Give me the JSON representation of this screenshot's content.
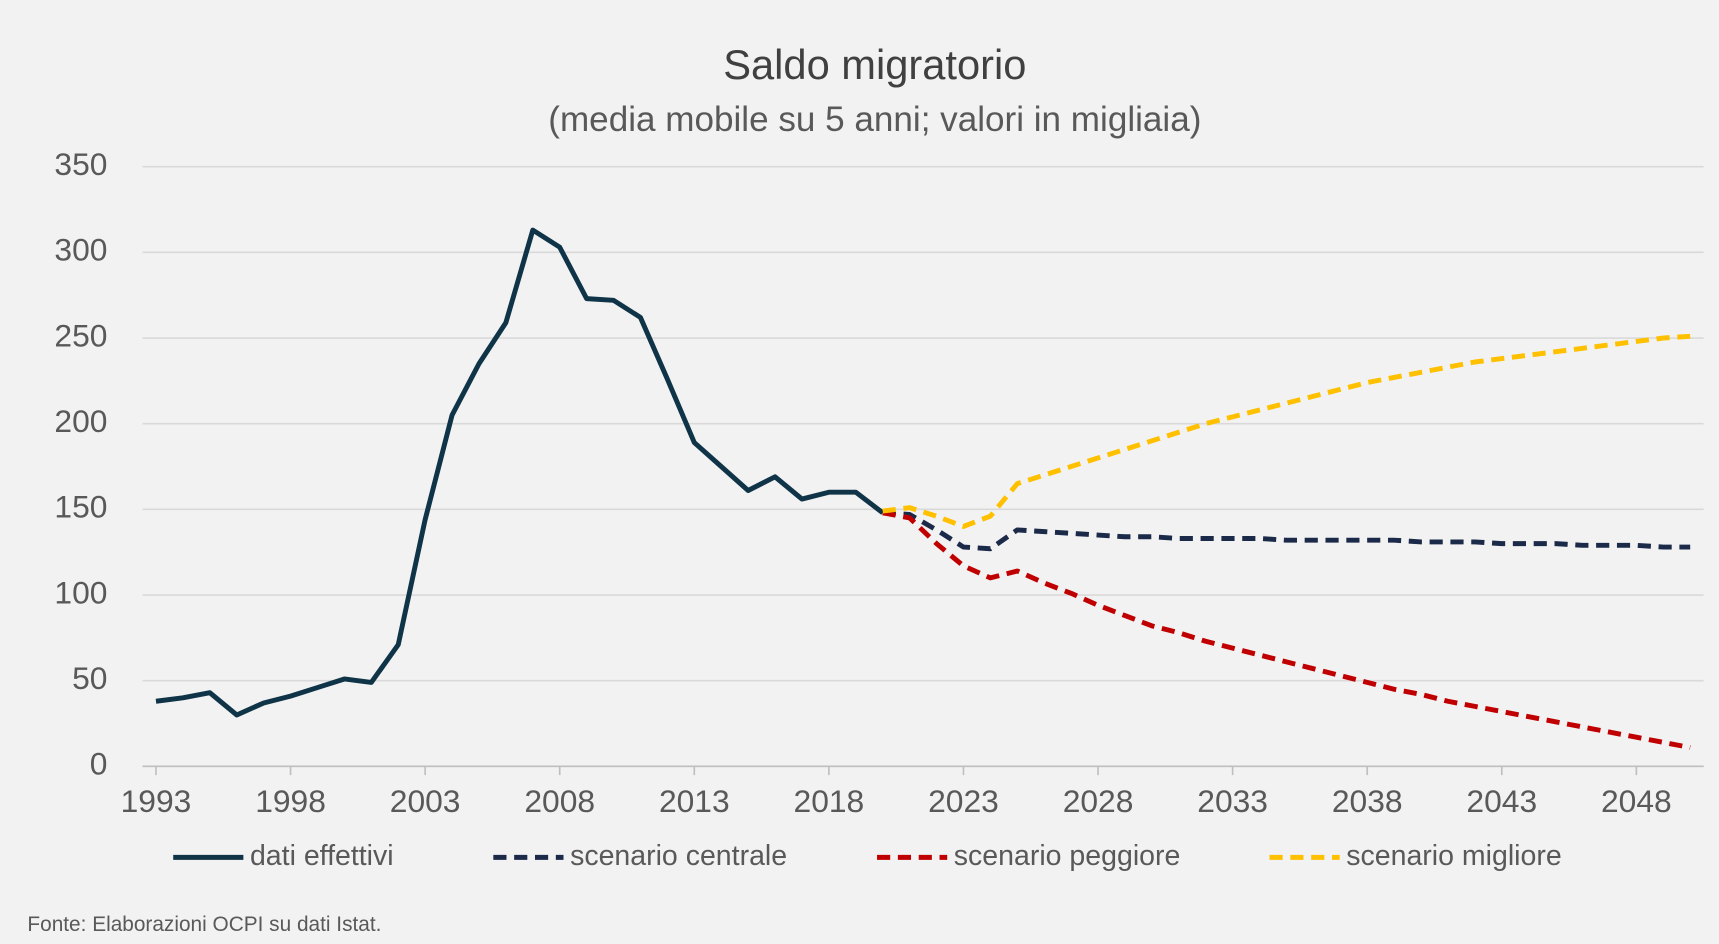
{
  "chart_data": {
    "type": "line",
    "title": "Saldo migratorio",
    "subtitle": "(media mobile su 5 anni; valori in migliaia)",
    "source": "Fonte: Elaborazioni OCPI su dati Istat.",
    "x": [
      1993,
      1994,
      1995,
      1996,
      1997,
      1998,
      1999,
      2000,
      2001,
      2002,
      2003,
      2004,
      2005,
      2006,
      2007,
      2008,
      2009,
      2010,
      2011,
      2012,
      2013,
      2014,
      2015,
      2016,
      2017,
      2018,
      2019,
      2020,
      2021,
      2022,
      2023,
      2024,
      2025,
      2026,
      2027,
      2028,
      2029,
      2030,
      2031,
      2032,
      2033,
      2034,
      2035,
      2036,
      2037,
      2038,
      2039,
      2040,
      2041,
      2042,
      2043,
      2044,
      2045,
      2046,
      2047,
      2048,
      2049,
      2050
    ],
    "xlim": [
      1992.5,
      2050.5
    ],
    "xticks": [
      1993,
      1998,
      2003,
      2008,
      2013,
      2018,
      2023,
      2028,
      2033,
      2038,
      2043,
      2048
    ],
    "ylim": [
      0,
      350
    ],
    "yticks": [
      0,
      50,
      100,
      150,
      200,
      250,
      300,
      350
    ],
    "grid": true,
    "legend": "bottom",
    "series": [
      {
        "name": "dati effettivi",
        "color": "#0f3447",
        "dash": false,
        "values": [
          38,
          40,
          43,
          30,
          37,
          41,
          46,
          51,
          49,
          71,
          144,
          205,
          235,
          259,
          313,
          303,
          273,
          272,
          262,
          226,
          189,
          175,
          161,
          169,
          156,
          160,
          160,
          148,
          null,
          null,
          null,
          null,
          null,
          null,
          null,
          null,
          null,
          null,
          null,
          null,
          null,
          null,
          null,
          null,
          null,
          null,
          null,
          null,
          null,
          null,
          null,
          null,
          null,
          null,
          null,
          null,
          null,
          null
        ]
      },
      {
        "name": "scenario centrale",
        "color": "#1b2a48",
        "dash": true,
        "values": [
          null,
          null,
          null,
          null,
          null,
          null,
          null,
          null,
          null,
          null,
          null,
          null,
          null,
          null,
          null,
          null,
          null,
          null,
          null,
          null,
          null,
          null,
          null,
          null,
          null,
          null,
          null,
          148,
          147,
          138,
          128,
          127,
          138,
          137,
          136,
          135,
          134,
          134,
          133,
          133,
          133,
          133,
          132,
          132,
          132,
          132,
          132,
          131,
          131,
          131,
          130,
          130,
          130,
          129,
          129,
          129,
          128,
          128
        ]
      },
      {
        "name": "scenario peggiore",
        "color": "#c00000",
        "dash": true,
        "values": [
          null,
          null,
          null,
          null,
          null,
          null,
          null,
          null,
          null,
          null,
          null,
          null,
          null,
          null,
          null,
          null,
          null,
          null,
          null,
          null,
          null,
          null,
          null,
          null,
          null,
          null,
          null,
          148,
          145,
          130,
          117,
          110,
          114,
          107,
          101,
          94,
          88,
          82,
          78,
          73,
          69,
          65,
          61,
          57,
          53,
          49,
          45,
          42,
          38,
          35,
          32,
          29,
          26,
          23,
          20,
          17,
          14,
          11
        ]
      },
      {
        "name": "scenario migliore",
        "color": "#ffc000",
        "dash": true,
        "values": [
          null,
          null,
          null,
          null,
          null,
          null,
          null,
          null,
          null,
          null,
          null,
          null,
          null,
          null,
          null,
          null,
          null,
          null,
          null,
          null,
          null,
          null,
          null,
          null,
          null,
          null,
          null,
          149,
          151,
          146,
          140,
          146,
          165,
          170,
          175,
          180,
          185,
          190,
          195,
          200,
          204,
          208,
          212,
          216,
          220,
          224,
          227,
          230,
          233,
          236,
          238,
          240,
          242,
          244,
          246,
          248,
          250,
          251
        ]
      }
    ]
  }
}
